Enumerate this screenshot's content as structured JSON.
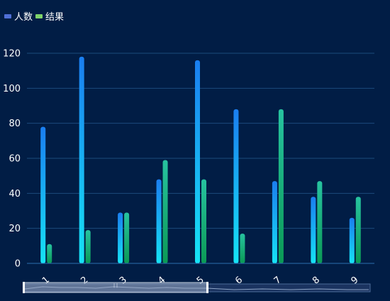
{
  "chart_data": {
    "type": "bar",
    "categories": [
      "1",
      "2",
      "3",
      "4",
      "5",
      "6",
      "7",
      "8",
      "9"
    ],
    "series": [
      {
        "name": "人数",
        "values": [
          78,
          118,
          29,
          48,
          116,
          88,
          47,
          38,
          26
        ]
      },
      {
        "name": "结果",
        "values": [
          11,
          19,
          29,
          59,
          48,
          17,
          88,
          47,
          38
        ]
      }
    ],
    "ylim": [
      0,
      120
    ],
    "yticks": [
      0,
      20,
      40,
      60,
      80,
      100,
      120
    ],
    "grid": true,
    "legend_position": "top-left",
    "xlabel": "",
    "ylabel": "",
    "title": ""
  },
  "colors": {
    "background": "#011d45",
    "series1_top": "#1a7ef0",
    "series1_bottom": "#16e4f5",
    "series2_top": "#27c3a0",
    "series2_bottom": "#0b9a55",
    "legend1": "#4f6fd6",
    "legend2": "#7ed36a",
    "text": "#ffffff",
    "grid": "#1b4a7c"
  },
  "slider": {
    "range": "1–5 of 1–9"
  }
}
